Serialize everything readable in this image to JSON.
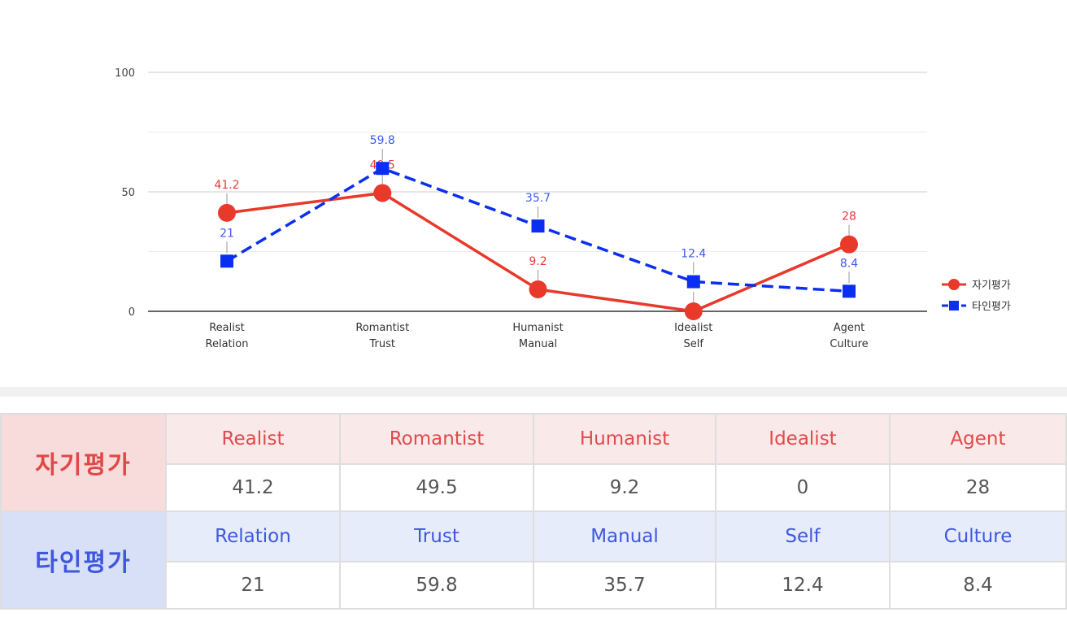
{
  "chart_data": {
    "type": "line",
    "categories": [
      [
        "Realist",
        "Relation"
      ],
      [
        "Romantist",
        "Trust"
      ],
      [
        "Humanist",
        "Manual"
      ],
      [
        "Idealist",
        "Self"
      ],
      [
        "Agent",
        "Culture"
      ]
    ],
    "ylim": [
      0,
      100
    ],
    "yticks": [
      "100",
      "50",
      "0"
    ],
    "series": [
      {
        "name": "자기평가",
        "values": [
          41.2,
          49.5,
          9.2,
          0,
          28
        ],
        "color": "#e8392b",
        "marker": "circle",
        "dash": "solid"
      },
      {
        "name": "타인평가",
        "values": [
          21,
          59.8,
          35.7,
          12.4,
          8.4
        ],
        "color": "#0a2ff0",
        "marker": "square",
        "dash": "dashed"
      }
    ],
    "legend": "right",
    "grid": true
  },
  "table": {
    "self": {
      "label": "자기평가",
      "headers": [
        "Realist",
        "Romantist",
        "Humanist",
        "Idealist",
        "Agent"
      ],
      "values": [
        "41.2",
        "49.5",
        "9.2",
        "0",
        "28"
      ]
    },
    "other": {
      "label": "타인평가",
      "headers": [
        "Relation",
        "Trust",
        "Manual",
        "Self",
        "Culture"
      ],
      "values": [
        "21",
        "59.8",
        "35.7",
        "12.4",
        "8.4"
      ]
    }
  }
}
